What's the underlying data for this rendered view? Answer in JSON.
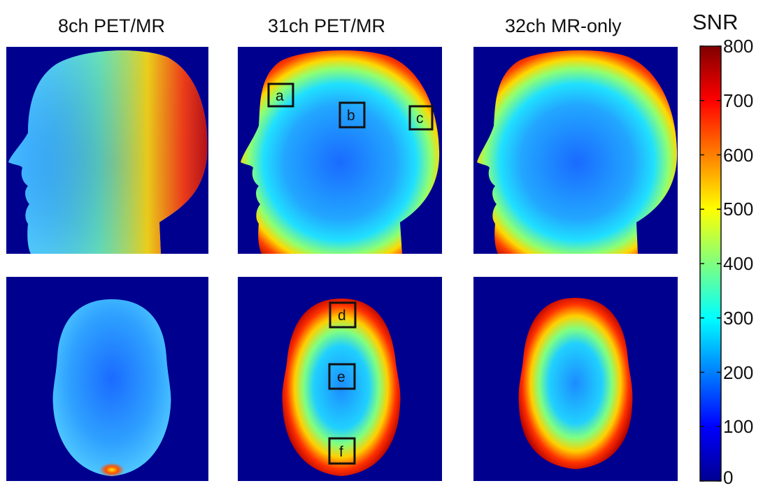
{
  "columns": [
    "8ch PET/MR",
    "31ch PET/MR",
    "32ch MR-only"
  ],
  "colorbar": {
    "title": "SNR",
    "ticks": [
      "800",
      "700",
      "600",
      "500",
      "400",
      "300",
      "200",
      "100",
      "0"
    ],
    "min": 0,
    "max": 800,
    "colormap": "jet"
  },
  "rois": [
    {
      "label": "a",
      "panel": "31ch-sagittal"
    },
    {
      "label": "b",
      "panel": "31ch-sagittal"
    },
    {
      "label": "c",
      "panel": "31ch-sagittal"
    },
    {
      "label": "d",
      "panel": "31ch-axial"
    },
    {
      "label": "e",
      "panel": "31ch-axial"
    },
    {
      "label": "f",
      "panel": "31ch-axial"
    }
  ],
  "colors": {
    "background": "#00008f"
  }
}
